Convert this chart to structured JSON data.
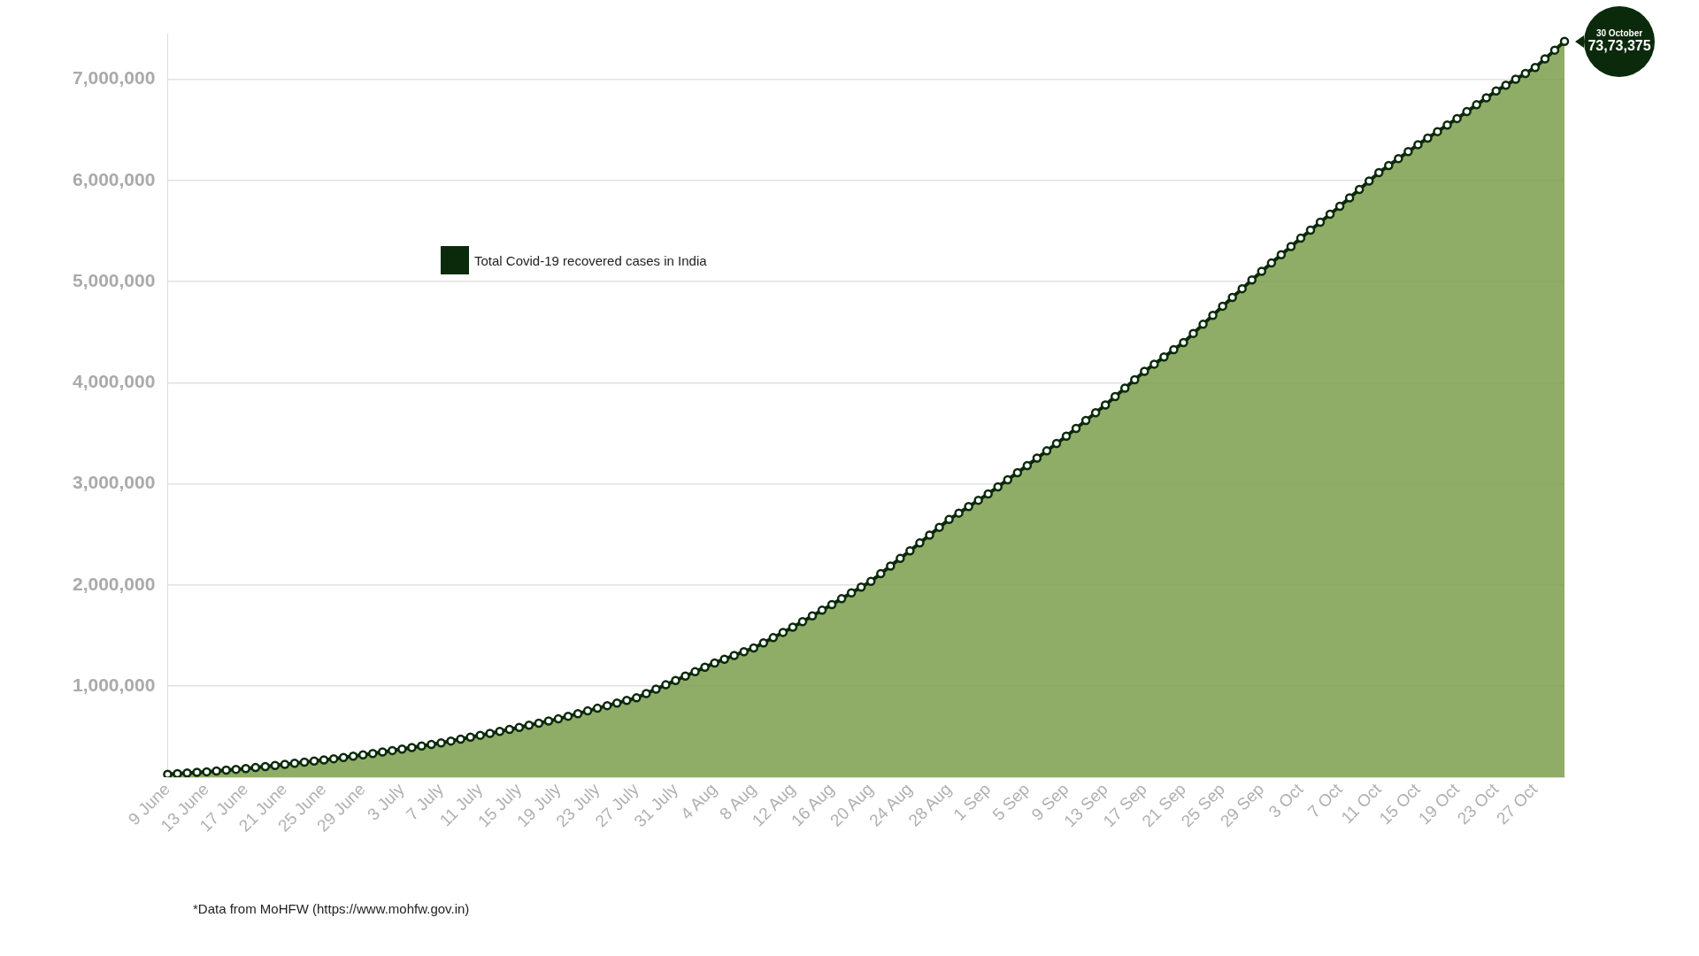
{
  "chart_data": {
    "type": "area",
    "categories": [
      "9 June",
      null,
      null,
      null,
      "13 June",
      null,
      null,
      null,
      "17 June",
      null,
      null,
      null,
      "21 June",
      null,
      null,
      null,
      "25 June",
      null,
      null,
      null,
      "29 June",
      null,
      null,
      null,
      "3 July",
      null,
      null,
      null,
      "7 July",
      null,
      null,
      null,
      "11 July",
      null,
      null,
      null,
      "15 July",
      null,
      null,
      null,
      "19 July",
      null,
      null,
      null,
      "23 July",
      null,
      null,
      null,
      "27 July",
      null,
      null,
      null,
      "31 July",
      null,
      null,
      null,
      "4 Aug",
      null,
      null,
      null,
      "8 Aug",
      null,
      null,
      null,
      "12 Aug",
      null,
      null,
      null,
      "16 Aug",
      null,
      null,
      null,
      "20 Aug",
      null,
      null,
      null,
      "24 Aug",
      null,
      null,
      null,
      "28 Aug",
      null,
      null,
      null,
      "1 Sep",
      null,
      null,
      null,
      "5 Sep",
      null,
      null,
      null,
      "9 Sep",
      null,
      null,
      null,
      "13 Sep",
      null,
      null,
      null,
      "17 Sep",
      null,
      null,
      null,
      "21 Sep",
      null,
      null,
      null,
      "25 Sep",
      null,
      null,
      null,
      "29 Sep",
      null,
      null,
      null,
      "3 Oct",
      null,
      null,
      null,
      "7 Oct",
      null,
      null,
      null,
      "11 Oct",
      null,
      null,
      null,
      "15 Oct",
      null,
      null,
      null,
      "19 Oct",
      null,
      null,
      null,
      "23 Oct",
      null,
      null,
      null,
      "27 Oct",
      null,
      null,
      null
    ],
    "series": [
      {
        "name": "Total Covid-19 recovered cases in India",
        "color": "#0b2a0b",
        "values": [
          129000,
          135000,
          142000,
          148000,
          154000,
          162000,
          170000,
          178000,
          186000,
          196000,
          206000,
          216000,
          227000,
          238000,
          249000,
          260000,
          271000,
          283000,
          296000,
          308000,
          321000,
          335000,
          350000,
          364000,
          379000,
          394000,
          409000,
          424000,
          439000,
          458000,
          477000,
          496000,
          515000,
          534000,
          554000,
          573000,
          593000,
          614000,
          635000,
          656000,
          677000,
          703000,
          729000,
          756000,
          782000,
          808000,
          834000,
          860000,
          885000,
          928000,
          971000,
          1014000,
          1057000,
          1100000,
          1143000,
          1187000,
          1230000,
          1267000,
          1304000,
          1341000,
          1378000,
          1429000,
          1480000,
          1532000,
          1583000,
          1639000,
          1695000,
          1751000,
          1807000,
          1865000,
          1922000,
          1980000,
          2037000,
          2112000,
          2188000,
          2263000,
          2338000,
          2416000,
          2493000,
          2571000,
          2648000,
          2711000,
          2775000,
          2838000,
          2901000,
          2971000,
          3041000,
          3111000,
          3181000,
          3254000,
          3326000,
          3399000,
          3471000,
          3548000,
          3626000,
          3703000,
          3780000,
          3863000,
          3946000,
          4029000,
          4112000,
          4183000,
          4254000,
          4326000,
          4397000,
          4487000,
          4577000,
          4666000,
          4756000,
          4842000,
          4929000,
          5015000,
          5101000,
          5183000,
          5265000,
          5346000,
          5428000,
          5507000,
          5586000,
          5665000,
          5744000,
          5827000,
          5910000,
          5994000,
          6077000,
          6146000,
          6215000,
          6284000,
          6353000,
          6418000,
          6482000,
          6547000,
          6611000,
          6679000,
          6747000,
          6815000,
          6883000,
          6941000,
          6999000,
          7057000,
          7115000,
          7201000,
          7287000,
          7373375
        ]
      }
    ],
    "ylim": [
      100000,
      7450000
    ],
    "yticks": [
      {
        "value": 1000000,
        "label": "1,000,000"
      },
      {
        "value": 2000000,
        "label": "2,000,000"
      },
      {
        "value": 3000000,
        "label": "3,000,000"
      },
      {
        "value": 4000000,
        "label": "4,000,000"
      },
      {
        "value": 5000000,
        "label": "5,000,000"
      },
      {
        "value": 6000000,
        "label": "6,000,000"
      },
      {
        "value": 7000000,
        "label": "7,000,000"
      }
    ],
    "grid": "y",
    "legend": "top left",
    "marker": "circle",
    "annotations": [
      "30 October",
      "73,73,375",
      "*Data from MoHFW (https://www.mohfw.gov.in)"
    ]
  }
}
